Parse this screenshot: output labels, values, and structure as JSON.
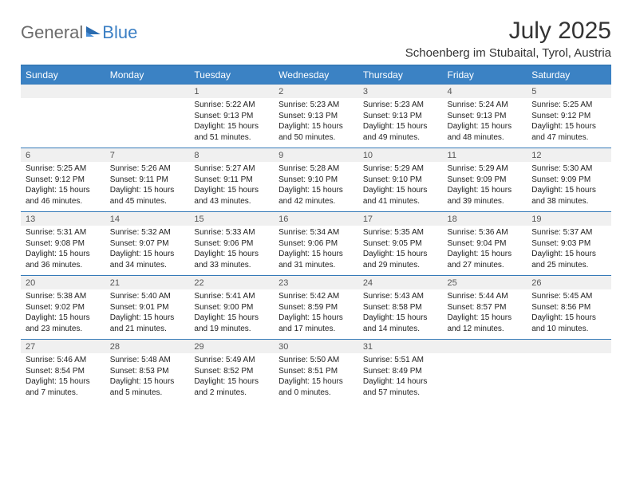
{
  "logo": {
    "text1": "General",
    "text2": "Blue"
  },
  "title": "July 2025",
  "location": "Schoenberg im Stubaital, Tyrol, Austria",
  "colors": {
    "header_bg": "#3b82c4",
    "header_text": "#ffffff",
    "date_bg": "#f0f0f0",
    "border": "#357ab8",
    "text": "#222222"
  },
  "daysOfWeek": [
    "Sunday",
    "Monday",
    "Tuesday",
    "Wednesday",
    "Thursday",
    "Friday",
    "Saturday"
  ],
  "weeks": [
    [
      null,
      null,
      {
        "d": "1",
        "sr": "5:22 AM",
        "ss": "9:13 PM",
        "dl": "15 hours and 51 minutes."
      },
      {
        "d": "2",
        "sr": "5:23 AM",
        "ss": "9:13 PM",
        "dl": "15 hours and 50 minutes."
      },
      {
        "d": "3",
        "sr": "5:23 AM",
        "ss": "9:13 PM",
        "dl": "15 hours and 49 minutes."
      },
      {
        "d": "4",
        "sr": "5:24 AM",
        "ss": "9:13 PM",
        "dl": "15 hours and 48 minutes."
      },
      {
        "d": "5",
        "sr": "5:25 AM",
        "ss": "9:12 PM",
        "dl": "15 hours and 47 minutes."
      }
    ],
    [
      {
        "d": "6",
        "sr": "5:25 AM",
        "ss": "9:12 PM",
        "dl": "15 hours and 46 minutes."
      },
      {
        "d": "7",
        "sr": "5:26 AM",
        "ss": "9:11 PM",
        "dl": "15 hours and 45 minutes."
      },
      {
        "d": "8",
        "sr": "5:27 AM",
        "ss": "9:11 PM",
        "dl": "15 hours and 43 minutes."
      },
      {
        "d": "9",
        "sr": "5:28 AM",
        "ss": "9:10 PM",
        "dl": "15 hours and 42 minutes."
      },
      {
        "d": "10",
        "sr": "5:29 AM",
        "ss": "9:10 PM",
        "dl": "15 hours and 41 minutes."
      },
      {
        "d": "11",
        "sr": "5:29 AM",
        "ss": "9:09 PM",
        "dl": "15 hours and 39 minutes."
      },
      {
        "d": "12",
        "sr": "5:30 AM",
        "ss": "9:09 PM",
        "dl": "15 hours and 38 minutes."
      }
    ],
    [
      {
        "d": "13",
        "sr": "5:31 AM",
        "ss": "9:08 PM",
        "dl": "15 hours and 36 minutes."
      },
      {
        "d": "14",
        "sr": "5:32 AM",
        "ss": "9:07 PM",
        "dl": "15 hours and 34 minutes."
      },
      {
        "d": "15",
        "sr": "5:33 AM",
        "ss": "9:06 PM",
        "dl": "15 hours and 33 minutes."
      },
      {
        "d": "16",
        "sr": "5:34 AM",
        "ss": "9:06 PM",
        "dl": "15 hours and 31 minutes."
      },
      {
        "d": "17",
        "sr": "5:35 AM",
        "ss": "9:05 PM",
        "dl": "15 hours and 29 minutes."
      },
      {
        "d": "18",
        "sr": "5:36 AM",
        "ss": "9:04 PM",
        "dl": "15 hours and 27 minutes."
      },
      {
        "d": "19",
        "sr": "5:37 AM",
        "ss": "9:03 PM",
        "dl": "15 hours and 25 minutes."
      }
    ],
    [
      {
        "d": "20",
        "sr": "5:38 AM",
        "ss": "9:02 PM",
        "dl": "15 hours and 23 minutes."
      },
      {
        "d": "21",
        "sr": "5:40 AM",
        "ss": "9:01 PM",
        "dl": "15 hours and 21 minutes."
      },
      {
        "d": "22",
        "sr": "5:41 AM",
        "ss": "9:00 PM",
        "dl": "15 hours and 19 minutes."
      },
      {
        "d": "23",
        "sr": "5:42 AM",
        "ss": "8:59 PM",
        "dl": "15 hours and 17 minutes."
      },
      {
        "d": "24",
        "sr": "5:43 AM",
        "ss": "8:58 PM",
        "dl": "15 hours and 14 minutes."
      },
      {
        "d": "25",
        "sr": "5:44 AM",
        "ss": "8:57 PM",
        "dl": "15 hours and 12 minutes."
      },
      {
        "d": "26",
        "sr": "5:45 AM",
        "ss": "8:56 PM",
        "dl": "15 hours and 10 minutes."
      }
    ],
    [
      {
        "d": "27",
        "sr": "5:46 AM",
        "ss": "8:54 PM",
        "dl": "15 hours and 7 minutes."
      },
      {
        "d": "28",
        "sr": "5:48 AM",
        "ss": "8:53 PM",
        "dl": "15 hours and 5 minutes."
      },
      {
        "d": "29",
        "sr": "5:49 AM",
        "ss": "8:52 PM",
        "dl": "15 hours and 2 minutes."
      },
      {
        "d": "30",
        "sr": "5:50 AM",
        "ss": "8:51 PM",
        "dl": "15 hours and 0 minutes."
      },
      {
        "d": "31",
        "sr": "5:51 AM",
        "ss": "8:49 PM",
        "dl": "14 hours and 57 minutes."
      },
      null,
      null
    ]
  ],
  "labels": {
    "sunrise": "Sunrise:",
    "sunset": "Sunset:",
    "daylight": "Daylight:"
  }
}
